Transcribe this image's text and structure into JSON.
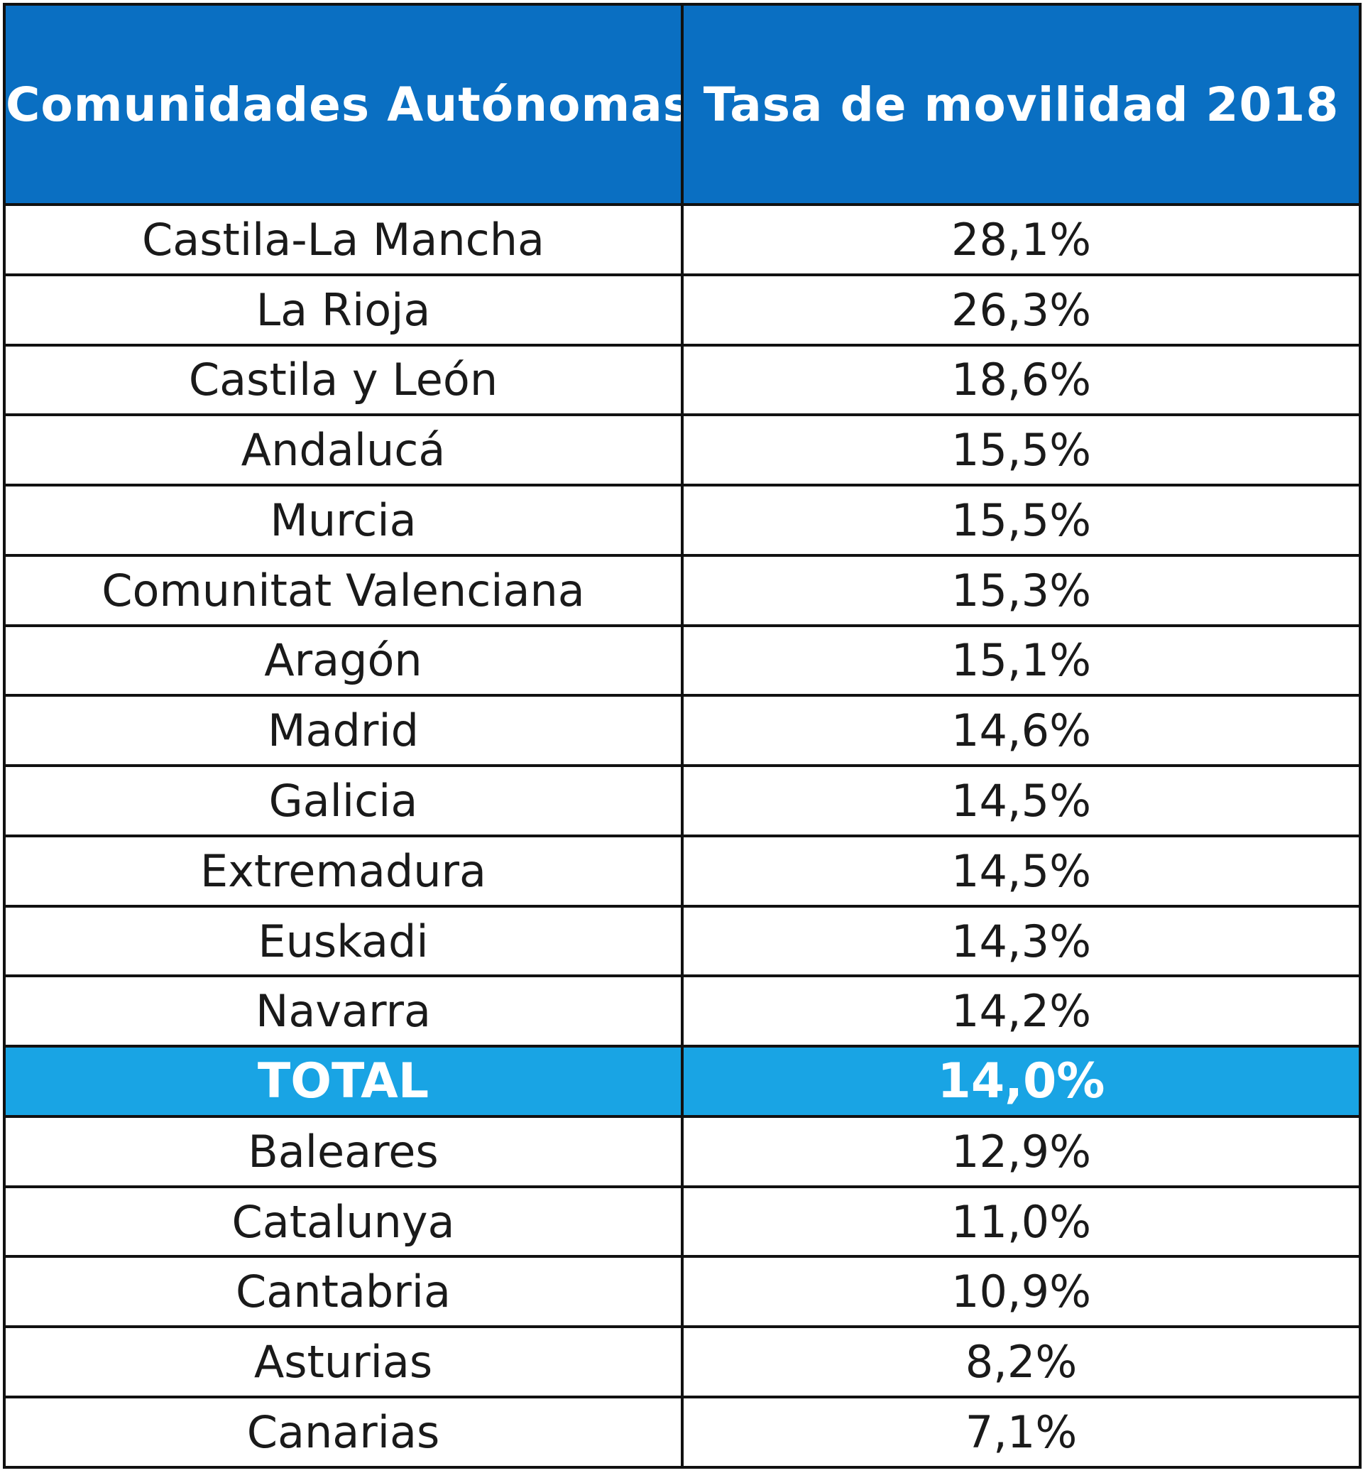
{
  "table": {
    "headers": {
      "region": "Comunidades Autónomas",
      "rate": "Tasa de movilidad 2018"
    },
    "rows": [
      {
        "region": "Castila-La Mancha",
        "rate": "28,1%"
      },
      {
        "region": "La Rioja",
        "rate": "26,3%"
      },
      {
        "region": "Castila y León",
        "rate": "18,6%"
      },
      {
        "region": "Andalucá",
        "rate": "15,5%"
      },
      {
        "region": "Murcia",
        "rate": "15,5%"
      },
      {
        "region": "Comunitat Valenciana",
        "rate": "15,3%"
      },
      {
        "region": "Aragón",
        "rate": "15,1%"
      },
      {
        "region": "Madrid",
        "rate": "14,6%"
      },
      {
        "region": "Galicia",
        "rate": "14,5%"
      },
      {
        "region": "Extremadura",
        "rate": "14,5%"
      },
      {
        "region": "Euskadi",
        "rate": "14,3%"
      },
      {
        "region": "Navarra",
        "rate": "14,2%"
      },
      {
        "region": "TOTAL",
        "rate": "14,0%"
      },
      {
        "region": "Baleares",
        "rate": "12,9%"
      },
      {
        "region": "Catalunya",
        "rate": "11,0%"
      },
      {
        "region": "Cantabria",
        "rate": "10,9%"
      },
      {
        "region": "Asturias",
        "rate": "8,2%"
      },
      {
        "region": "Canarias",
        "rate": "7,1%"
      }
    ]
  },
  "colors": {
    "header_bg": "#0a6fc2",
    "total_bg": "#19a4e4",
    "border": "#111111"
  }
}
